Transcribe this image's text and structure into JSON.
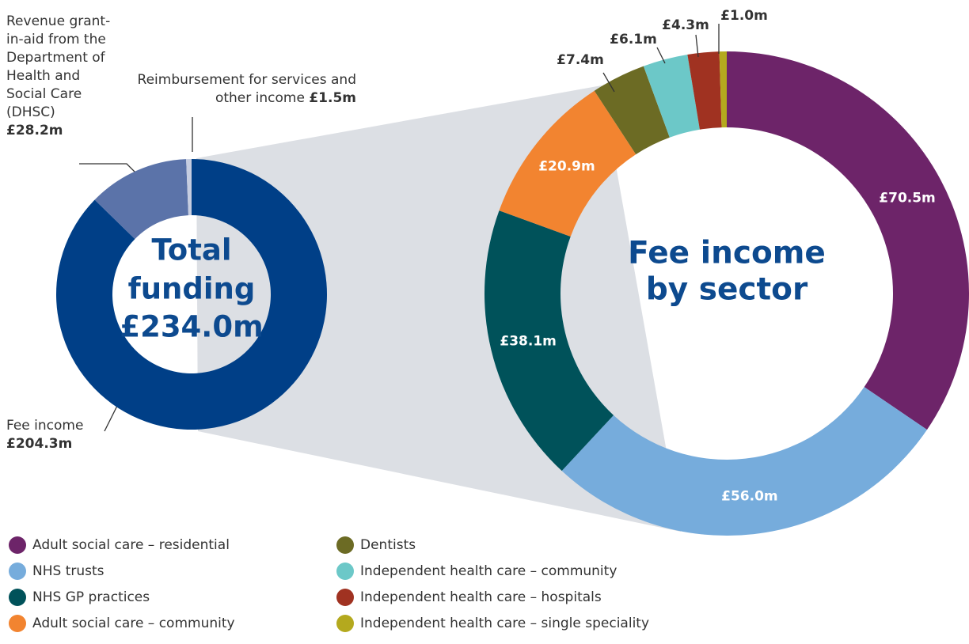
{
  "chart_data": [
    {
      "type": "donut",
      "center_text": [
        "Total",
        "funding",
        "£234.0m"
      ],
      "categories": [
        "Fee income",
        "Revenue grant-in-aid from the Department of Health and Social Care (DHSC)",
        "Reimbursement for services and other income"
      ],
      "values": [
        204.3,
        28.2,
        1.5
      ],
      "value_labels": [
        "£204.3m",
        "£28.2m",
        "£1.5m"
      ],
      "colors": [
        "#003f87",
        "#5b73a9",
        "#c6cde0"
      ]
    },
    {
      "type": "donut",
      "center_text": [
        "Fee income",
        "by sector"
      ],
      "categories": [
        "Adult social care – residential",
        "NHS trusts",
        "NHS GP practices",
        "Adult social care – community",
        "Dentists",
        "Independent health care – community",
        "Independent health care – hospitals",
        "Independent health care – single speciality"
      ],
      "values": [
        70.5,
        56.0,
        38.1,
        20.9,
        7.4,
        6.1,
        4.3,
        1.0
      ],
      "value_labels": [
        "£70.5m",
        "£56.0m",
        "£38.1m",
        "£20.9m",
        "£7.4m",
        "£6.1m",
        "£4.3m",
        "£1.0m"
      ],
      "colors": [
        "#6d2469",
        "#76acdc",
        "#00525a",
        "#f28430",
        "#6c6b24",
        "#6cc8c8",
        "#a03221",
        "#b4a91e"
      ]
    }
  ]
}
